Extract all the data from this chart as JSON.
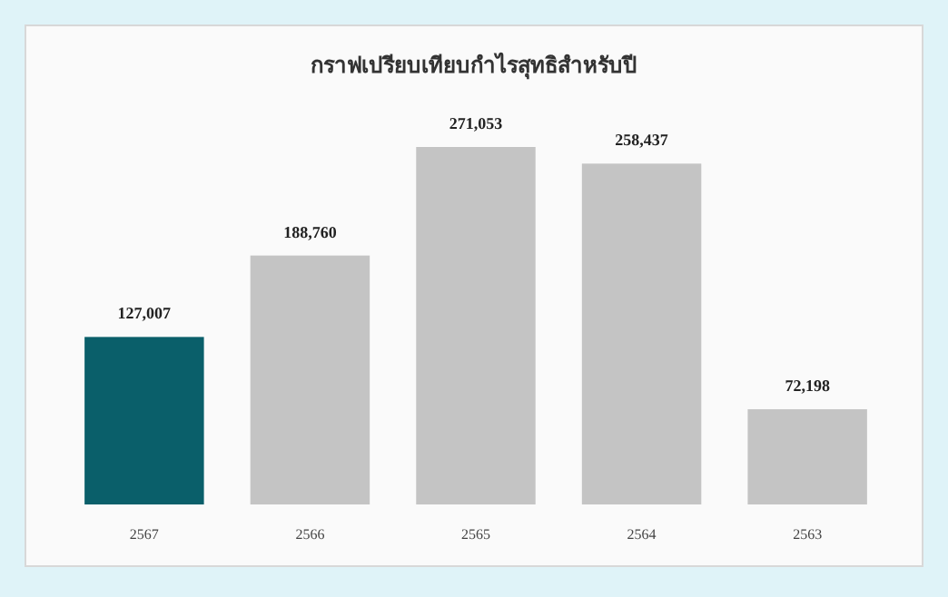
{
  "chart_data": {
    "type": "bar",
    "title": "กราฟเปรียบเทียบกำไรสุทธิสำหรับปี",
    "categories": [
      "2567",
      "2566",
      "2565",
      "2564",
      "2563"
    ],
    "values": [
      127007,
      188760,
      271053,
      258437,
      72198
    ],
    "value_labels": [
      "127,007",
      "188,760",
      "271,053",
      "258,437",
      "72,198"
    ],
    "colors": [
      "#0a5f6a",
      "#c4c4c4",
      "#c4c4c4",
      "#c4c4c4",
      "#c4c4c4"
    ]
  }
}
